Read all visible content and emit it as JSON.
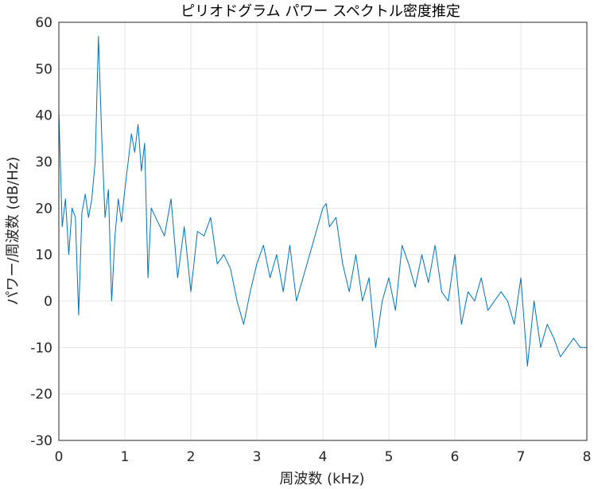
{
  "chart_data": {
    "type": "line",
    "title": "ピリオドグラム パワー スペクトル密度推定",
    "xlabel": "周波数 (kHz)",
    "ylabel": "パワー/周波数 (dB/Hz)",
    "xlim": [
      0,
      8
    ],
    "ylim": [
      -30,
      60
    ],
    "xticks": [
      "0",
      "1",
      "2",
      "3",
      "4",
      "5",
      "6",
      "7",
      "8"
    ],
    "yticks": [
      "-30",
      "-20",
      "-10",
      "0",
      "10",
      "20",
      "30",
      "40",
      "50",
      "60"
    ],
    "grid": true,
    "line_color": "#0072BD",
    "series": [
      {
        "x": [
          0,
          0.05,
          0.1,
          0.15,
          0.2,
          0.25,
          0.3,
          0.35,
          0.4,
          0.45,
          0.5,
          0.55,
          0.6,
          0.65,
          0.7,
          0.75,
          0.8,
          0.85,
          0.9,
          0.95,
          1.0,
          1.05,
          1.1,
          1.15,
          1.2,
          1.25,
          1.3,
          1.35,
          1.4,
          1.5,
          1.6,
          1.7,
          1.8,
          1.9,
          2.0,
          2.1,
          2.2,
          2.3,
          2.4,
          2.5,
          2.6,
          2.7,
          2.8,
          2.9,
          3.0,
          3.1,
          3.2,
          3.3,
          3.4,
          3.5,
          3.6,
          3.7,
          3.8,
          3.9,
          4.0,
          4.05,
          4.1,
          4.2,
          4.3,
          4.4,
          4.5,
          4.6,
          4.7,
          4.8,
          4.9,
          5.0,
          5.1,
          5.2,
          5.3,
          5.4,
          5.5,
          5.6,
          5.7,
          5.8,
          5.9,
          6.0,
          6.1,
          6.2,
          6.3,
          6.4,
          6.5,
          6.6,
          6.7,
          6.8,
          6.9,
          7.0,
          7.1,
          7.2,
          7.3,
          7.4,
          7.5,
          7.6,
          7.7,
          7.8,
          7.9,
          8.0
        ],
        "y": [
          41,
          16,
          22,
          10,
          20,
          18,
          -3,
          19,
          23,
          18,
          22,
          30,
          57,
          35,
          18,
          24,
          0,
          14,
          22,
          17,
          24,
          30,
          36,
          32,
          38,
          28,
          34,
          5,
          20,
          17,
          14,
          22,
          5,
          16,
          2,
          15,
          14,
          18,
          8,
          10,
          7,
          0,
          -5,
          2,
          8,
          12,
          5,
          10,
          2,
          12,
          0,
          5,
          10,
          15,
          20,
          21,
          16,
          18,
          8,
          2,
          10,
          0,
          5,
          -10,
          0,
          5,
          -2,
          12,
          8,
          3,
          10,
          4,
          12,
          2,
          0,
          10,
          -5,
          2,
          0,
          5,
          -2,
          0,
          2,
          0,
          -5,
          5,
          -14,
          0,
          -10,
          -5,
          -8,
          -12,
          -10,
          -8,
          -10,
          -10
        ]
      }
    ]
  }
}
